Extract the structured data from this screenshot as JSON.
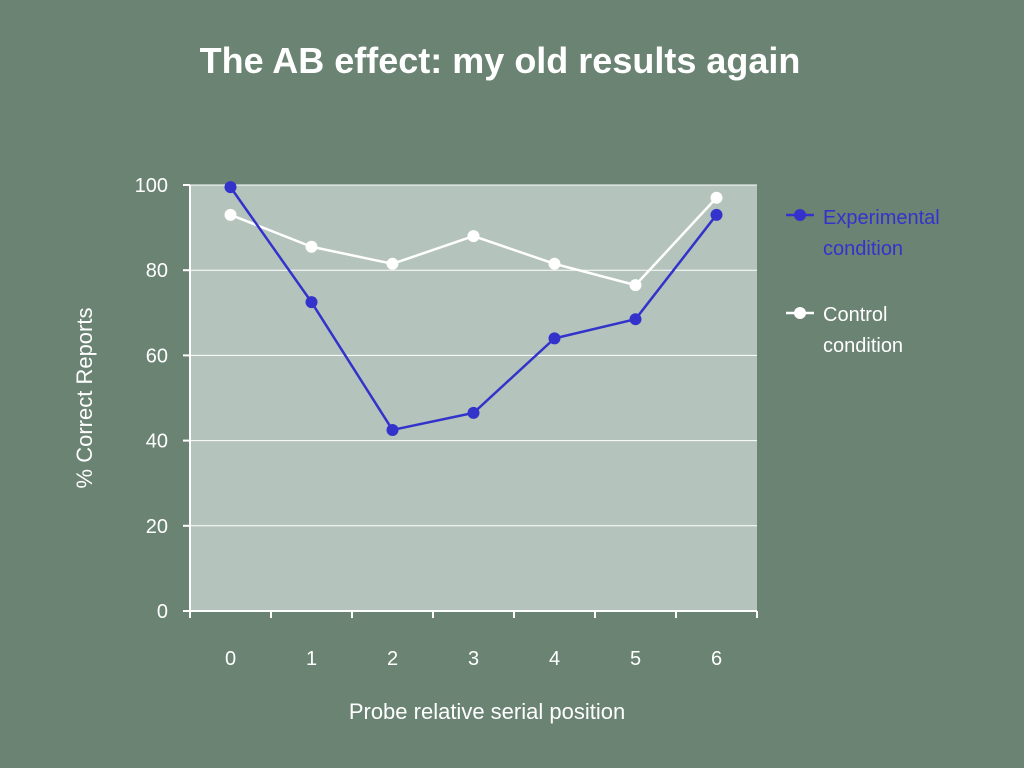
{
  "slide": {
    "title": "The AB effect: my old results again"
  },
  "colors": {
    "background": "#6a8373",
    "plot_area": "#b4c3bb",
    "experimental": "#3333cc",
    "control": "#ffffff"
  },
  "chart_data": {
    "type": "line",
    "title": "",
    "xlabel": "Probe relative serial position",
    "ylabel": "% Correct Reports",
    "x": [
      0,
      1,
      2,
      3,
      4,
      5,
      6
    ],
    "x_tick_labels": [
      "0",
      "1",
      "2",
      "3",
      "4",
      "5",
      "6"
    ],
    "y_ticks": [
      0,
      20,
      40,
      60,
      80,
      100
    ],
    "ylim": [
      0,
      100
    ],
    "grid": true,
    "legend_position": "right",
    "series": [
      {
        "name_line1": "Experimental",
        "name_line2": "condition",
        "color": "#3333cc",
        "values": [
          99.5,
          72.5,
          42.5,
          46.5,
          64,
          68.5,
          93
        ]
      },
      {
        "name_line1": "Control",
        "name_line2": "condition",
        "color": "#ffffff",
        "values": [
          93,
          85.5,
          81.5,
          88,
          81.5,
          76.5,
          97
        ]
      }
    ]
  }
}
